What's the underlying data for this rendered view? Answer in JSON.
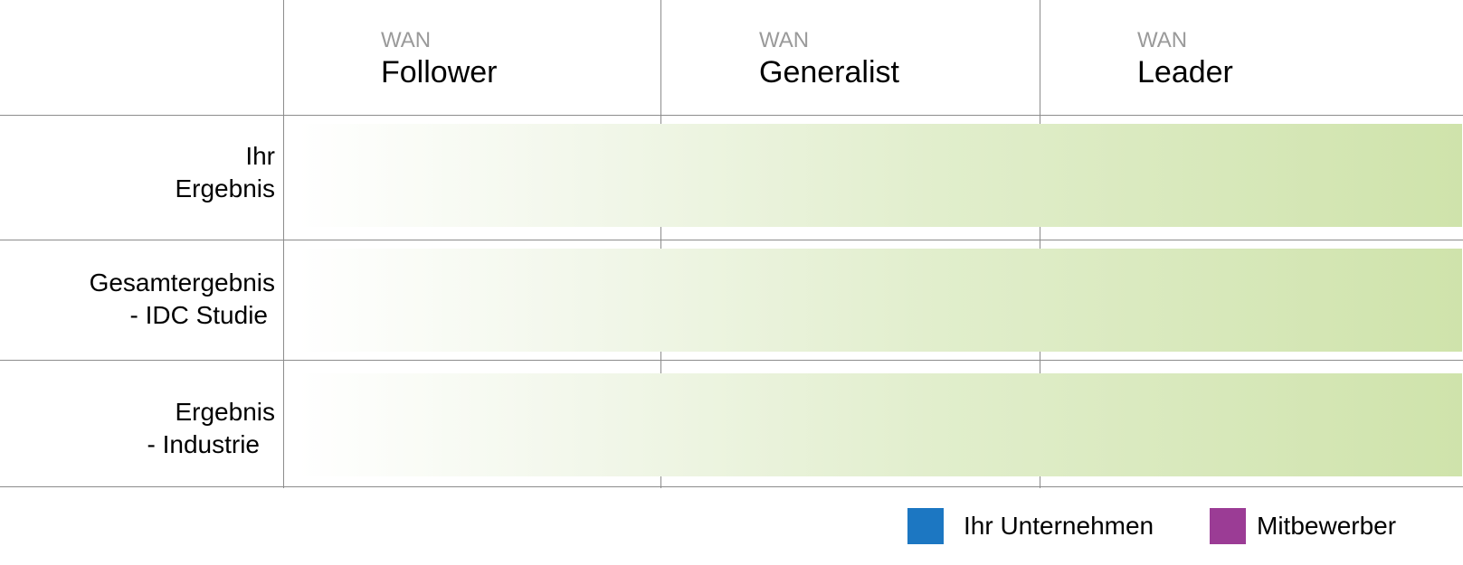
{
  "chart_data": {
    "type": "table",
    "columns": [
      {
        "prefix": "WAN",
        "title": "Follower"
      },
      {
        "prefix": "WAN",
        "title": "Generalist"
      },
      {
        "prefix": "WAN",
        "title": "Leader"
      }
    ],
    "rows": [
      {
        "line1": "Ihr",
        "line2": "Ergebnis"
      },
      {
        "line1": "Gesamtergebnis",
        "line2": "- IDC Studie"
      },
      {
        "line1": "Ergebnis",
        "line2": "- Industrie"
      }
    ],
    "legend": [
      {
        "label": "Ihr Unternehmen",
        "color": "#1c77c2"
      },
      {
        "label": "Mitbewerber",
        "color": "#9b3c95"
      }
    ],
    "gradient_colors": [
      "#ffffff",
      "#cfe3ab"
    ]
  }
}
